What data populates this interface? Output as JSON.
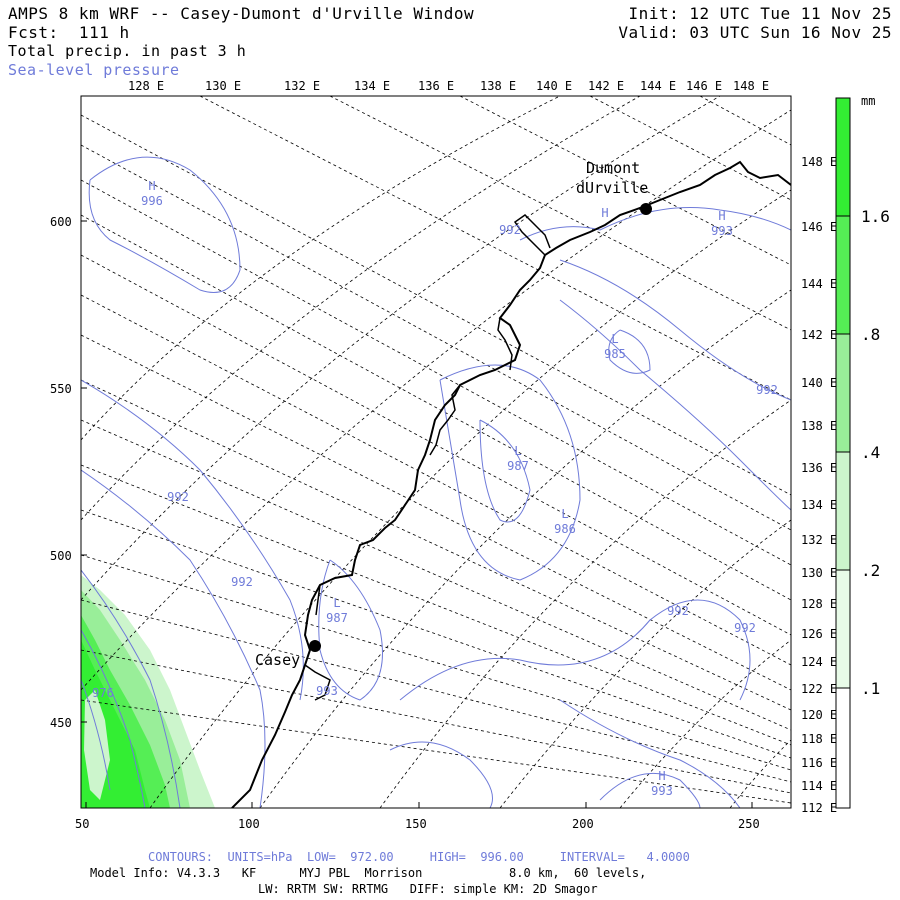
{
  "header": {
    "title": "AMPS 8 km WRF -- Casey-Dumont d'Urville Window",
    "fcst": "Fcst:  111 h",
    "field": "Total precip. in past 3 h",
    "overlay": "Sea-level pressure",
    "init": "Init: 12 UTC Tue 11 Nov 25",
    "valid": "Valid: 03 UTC Sun 16 Nov 25"
  },
  "top_lon_labels": [
    "128 E",
    "130 E",
    "132 E",
    "134 E",
    "136 E",
    "138 E",
    "140 E",
    "142 E",
    "144 E",
    "146 E",
    "148 E"
  ],
  "right_lon_labels": [
    "148 E",
    "146 E",
    "144 E",
    "142 E",
    "140 E",
    "138 E",
    "136 E",
    "134 E",
    "132 E",
    "130 E",
    "128 E",
    "126 E",
    "124 E",
    "122 E",
    "120 E",
    "118 E",
    "116 E",
    "114 E",
    "112 E"
  ],
  "x_ticks": [
    "50",
    "100",
    "150",
    "200",
    "250"
  ],
  "y_ticks": [
    "600",
    "550",
    "500",
    "450"
  ],
  "stations": [
    {
      "name_line1": "Dumont",
      "name_line2": "dUrville"
    },
    {
      "name_line1": "Casey",
      "name_line2": ""
    }
  ],
  "pressure_labels": [
    {
      "type": "H",
      "value": "996"
    },
    {
      "type": "H",
      "value": ""
    },
    {
      "type": "H",
      "value": "993"
    },
    {
      "type": "L",
      "value": "985"
    },
    {
      "type": "L",
      "value": "987"
    },
    {
      "type": "L",
      "value": "986"
    },
    {
      "type": "L",
      "value": "987"
    },
    {
      "type": "H",
      "value": "993"
    },
    {
      "type": "",
      "value": "992"
    },
    {
      "type": "",
      "value": "992"
    },
    {
      "type": "",
      "value": "992"
    },
    {
      "type": "",
      "value": "992"
    },
    {
      "type": "",
      "value": "992"
    },
    {
      "type": "",
      "value": "992"
    },
    {
      "type": "",
      "value": "993"
    },
    {
      "type": "",
      "value": "976"
    }
  ],
  "colorbar": {
    "unit": "mm",
    "labels": [
      "1.6",
      ".8",
      ".4",
      ".2",
      ".1"
    ],
    "colors": [
      "#33ee33",
      "#55ee55",
      "#99ee99",
      "#ccf5cc",
      "#e8fbe8",
      "#ffffff"
    ]
  },
  "footer": {
    "contours": "CONTOURS:  UNITS=hPa  LOW=  972.00     HIGH=  996.00     INTERVAL=   4.0000",
    "model_info": "Model Info: V4.3.3   KF      MYJ PBL  Morrison            8.0 km,  60 levels,",
    "physics": "LW: RRTM SW: RRTMG   DIFF: simple KM: 2D Smagor"
  },
  "colors": {
    "contour": "#6f7bd9",
    "grid": "#000000",
    "precip_heavy": "#33ee33",
    "precip_light": "#ccf5cc"
  }
}
